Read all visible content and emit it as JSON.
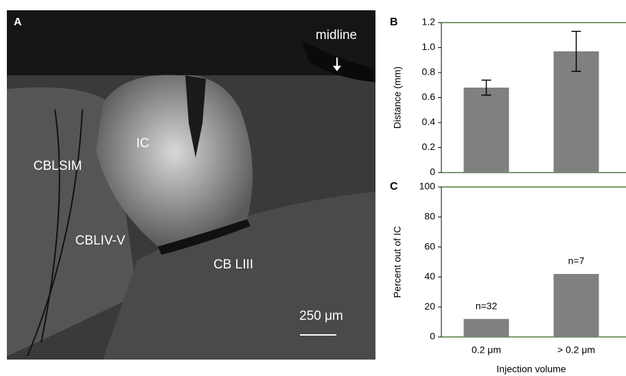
{
  "panel_a": {
    "label": "A",
    "midline": "midline",
    "regions": [
      "IC",
      "CBLSIM",
      "CBLIV-V",
      "CB LIII"
    ],
    "scale_bar": "250 μm"
  },
  "chart_data": [
    {
      "type": "bar",
      "label": "B",
      "ylabel": "Distance (mm)",
      "categories": [
        null,
        null
      ],
      "values": [
        0.68,
        0.97
      ],
      "errors": [
        0.06,
        0.16
      ],
      "color": "#808080",
      "ylim": [
        0,
        1.2
      ],
      "yticks": [
        0,
        0.2,
        0.4,
        0.6,
        0.8,
        {
          "value": 1,
          "label": "1.0"
        },
        1.2
      ]
    },
    {
      "type": "bar",
      "label": "C",
      "ylabel": "Percent out of IC",
      "xlabel": "Injection volume",
      "categories": [
        "0.2 μm",
        "> 0.2 μm"
      ],
      "values": [
        12,
        42
      ],
      "annotations": [
        "n=32",
        "n=7"
      ],
      "color": "#808080",
      "ylim": [
        0,
        100
      ],
      "yticks": [
        0,
        20,
        40,
        60,
        80,
        100
      ]
    }
  ]
}
